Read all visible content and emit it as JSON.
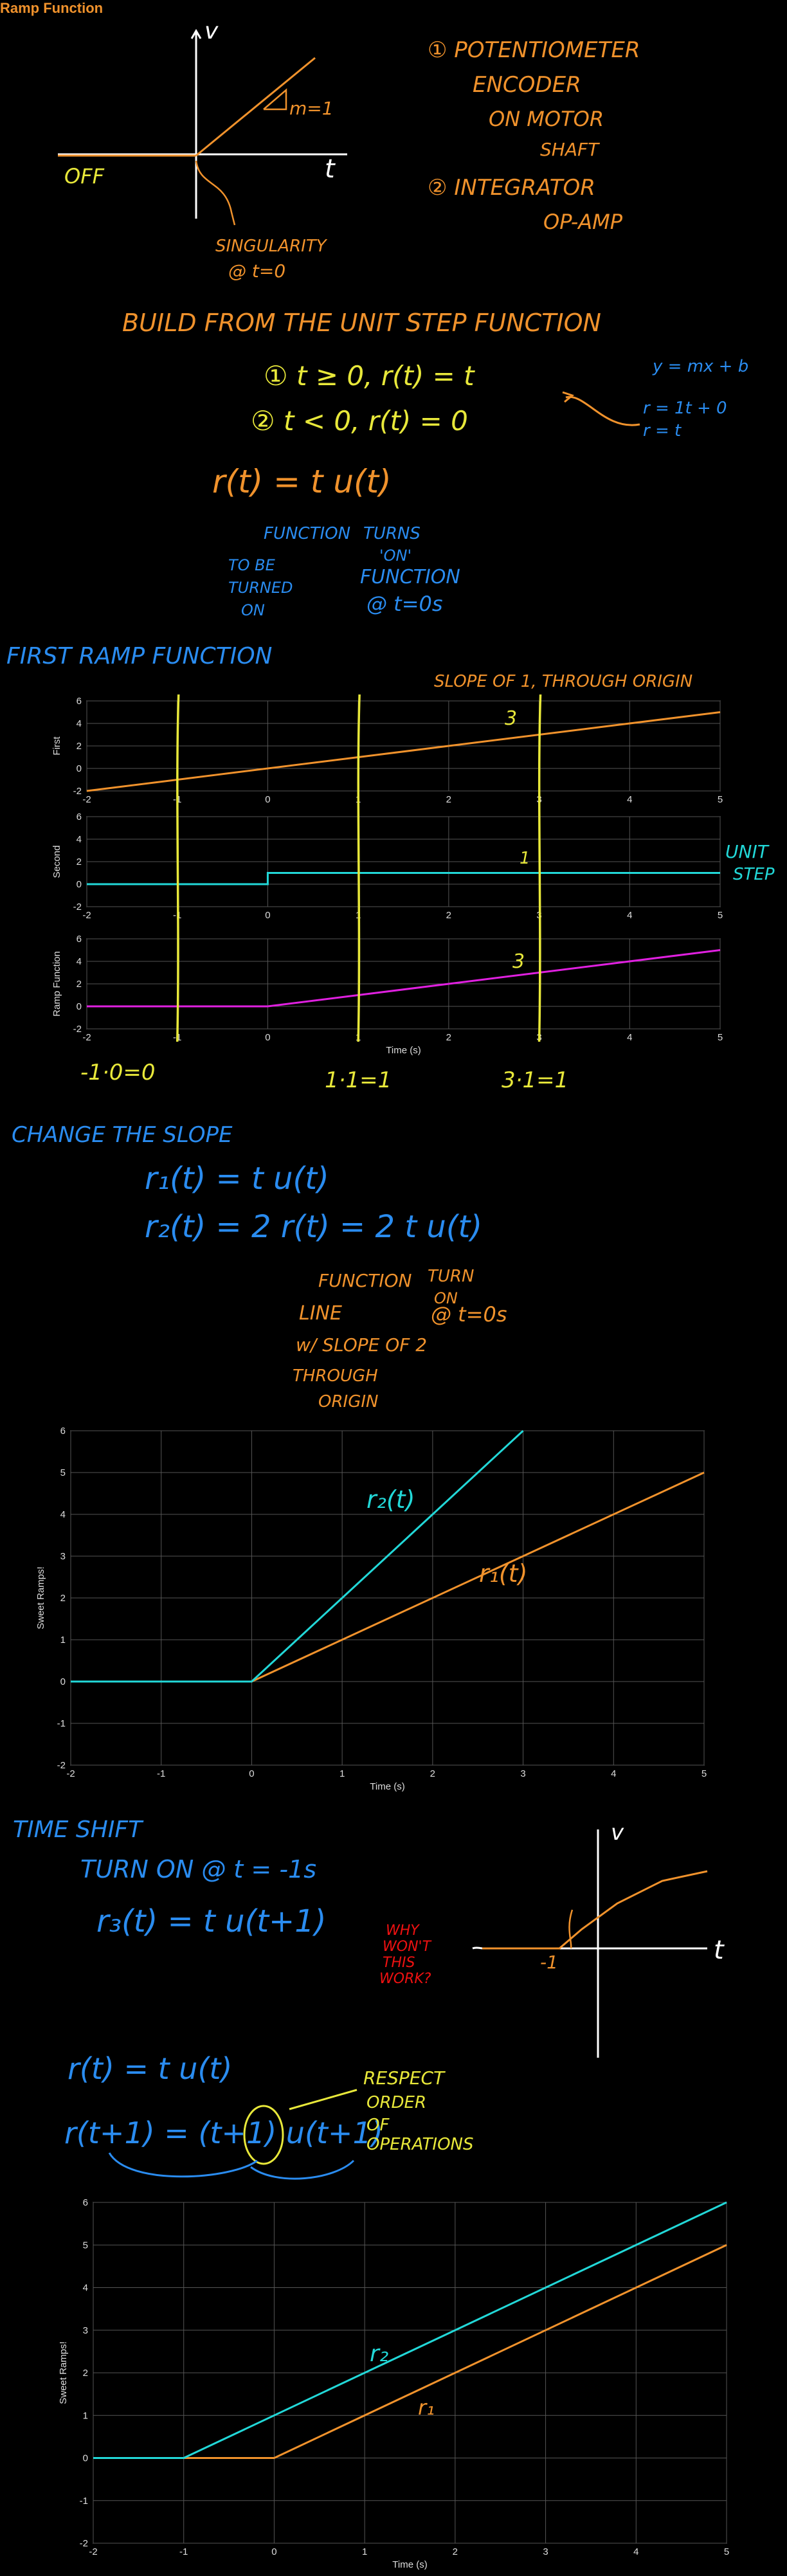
{
  "page_title": "Ramp Function",
  "colors": {
    "orange": "#f0922c",
    "blue": "#2a8cf0",
    "yellow": "#e8e83a",
    "cyan": "#22d8d8",
    "magenta": "#e020e0",
    "red": "#e11111"
  },
  "notes": {
    "sketch1": {
      "v": "v",
      "t": "t",
      "slope": "m=1",
      "off": "OFF",
      "singularity": "SINGULARITY",
      "at": "@ t=0"
    },
    "list": {
      "item1_a": "① POTENTIOMETER",
      "item1_b": "ENCODER",
      "item1_c": "ON MOTOR",
      "item1_d": "SHAFT",
      "item2_a": "② INTEGRATOR",
      "item2_b": "OP-AMP"
    },
    "build": {
      "heading": "BUILD FROM THE UNIT STEP FUNCTION",
      "cond1": "① t ≥ 0,  r(t) = t",
      "cond2": "② t < 0,  r(t) = 0",
      "eq_a": "y = mx + b",
      "eq_b": "r = 1t + 0",
      "eq_c": "r = t",
      "r_def": "r(t) = t u(t)",
      "func_a": "FUNCTION",
      "func_b": "TO BE",
      "func_c": "TURNED",
      "func_d": "ON",
      "turns_a": "TURNS",
      "turns_b": "'ON'",
      "turns_c": "FUNCTION",
      "turns_d": "@ t=0s"
    },
    "first": {
      "heading": "FIRST RAMP FUNCTION",
      "slope_note": "SLOPE OF 1, THROUGH ORIGIN",
      "mark_3a": "3",
      "mark_1": "1",
      "mark_3b": "3",
      "unit_a": "UNIT",
      "unit_b": "STEP",
      "calc1": "-1·0=0",
      "calc2": "1·1=1",
      "calc3": "3·1=1"
    },
    "change": {
      "heading": "CHANGE THE SLOPE",
      "eq1": "r₁(t) = t u(t)",
      "eq2": "r₂(t) = 2 r(t) = 2 t u(t)",
      "f_a": "FUNCTION",
      "f_b": "LINE",
      "f_c": "w/ SLOPE OF 2",
      "f_d": "THROUGH",
      "f_e": "ORIGIN",
      "t_a": "TURN",
      "t_b": "ON",
      "t_c": "@ t=0s",
      "lab_r2": "r₂(t)",
      "lab_r1": "r₁(t)"
    },
    "shift": {
      "heading": "TIME SHIFT",
      "turn": "TURN ON @ t = -1s",
      "eq": "r₃(t) = t u(t+1)",
      "why_a": "WHY",
      "why_b": "WON'T",
      "why_c": "THIS",
      "why_d": "WORK?",
      "sk_v": "v",
      "sk_t": "t",
      "sk_m1": "-1",
      "r_line": "r(t) = t u(t)",
      "r_shift": "r(t+1) = (t+1) u(t+1)",
      "resp_a": "RESPECT",
      "resp_b": "ORDER",
      "resp_c": "OF",
      "resp_d": "OPERATIONS",
      "lab_r2": "r₂",
      "lab_r1": "r₁"
    }
  },
  "chart_data": [
    {
      "type": "line",
      "ylabel": "First",
      "xlabel": "",
      "xlim": [
        -2,
        5
      ],
      "ylim": [
        -2,
        6
      ],
      "xticks": [
        -2,
        -1,
        0,
        1,
        2,
        3,
        4,
        5
      ],
      "yticks": [
        -2,
        0,
        2,
        4,
        6
      ],
      "grid": true,
      "series": [
        {
          "x": [
            -2,
            5
          ],
          "y": [
            -2,
            5
          ],
          "color": "#f0922c"
        }
      ]
    },
    {
      "type": "line",
      "ylabel": "Second",
      "xlabel": "",
      "xlim": [
        -2,
        5
      ],
      "ylim": [
        -2,
        6
      ],
      "xticks": [
        -2,
        -1,
        0,
        1,
        2,
        3,
        4,
        5
      ],
      "yticks": [
        -2,
        0,
        2,
        4,
        6
      ],
      "grid": true,
      "series": [
        {
          "x": [
            -2,
            0,
            0,
            5
          ],
          "y": [
            0,
            0,
            1,
            1
          ],
          "color": "#22d8d8"
        }
      ]
    },
    {
      "type": "line",
      "ylabel": "Ramp Function",
      "xlabel": "Time (s)",
      "xlim": [
        -2,
        5
      ],
      "ylim": [
        -2,
        6
      ],
      "xticks": [
        -2,
        -1,
        0,
        1,
        2,
        3,
        4,
        5
      ],
      "yticks": [
        -2,
        0,
        2,
        4,
        6
      ],
      "grid": true,
      "series": [
        {
          "x": [
            -2,
            0,
            5
          ],
          "y": [
            0,
            0,
            5
          ],
          "color": "#e020e0"
        }
      ]
    },
    {
      "type": "line",
      "ylabel": "Sweet Ramps!",
      "xlabel": "Time (s)",
      "xlim": [
        -2,
        5
      ],
      "ylim": [
        -2,
        6
      ],
      "xticks": [
        -2,
        -1,
        0,
        1,
        2,
        3,
        4,
        5
      ],
      "yticks": [
        -2,
        -1,
        0,
        1,
        2,
        3,
        4,
        5,
        6
      ],
      "grid": true,
      "series": [
        {
          "x": [
            -2,
            0,
            5
          ],
          "y": [
            0,
            0,
            5
          ],
          "color": "#f0922c"
        },
        {
          "x": [
            -2,
            0,
            3
          ],
          "y": [
            0,
            0,
            6
          ],
          "color": "#22d8d8"
        }
      ]
    },
    {
      "type": "line",
      "ylabel": "Sweet Ramps!",
      "xlabel": "Time (s)",
      "xlim": [
        -2,
        5
      ],
      "ylim": [
        -2,
        6
      ],
      "xticks": [
        -2,
        -1,
        0,
        1,
        2,
        3,
        4,
        5
      ],
      "yticks": [
        -2,
        -1,
        0,
        1,
        2,
        3,
        4,
        5,
        6
      ],
      "grid": true,
      "series": [
        {
          "x": [
            -2,
            0,
            5
          ],
          "y": [
            0,
            0,
            5
          ],
          "color": "#f0922c"
        },
        {
          "x": [
            -2,
            -1,
            5
          ],
          "y": [
            0,
            0,
            6
          ],
          "color": "#22d8d8"
        }
      ]
    }
  ]
}
